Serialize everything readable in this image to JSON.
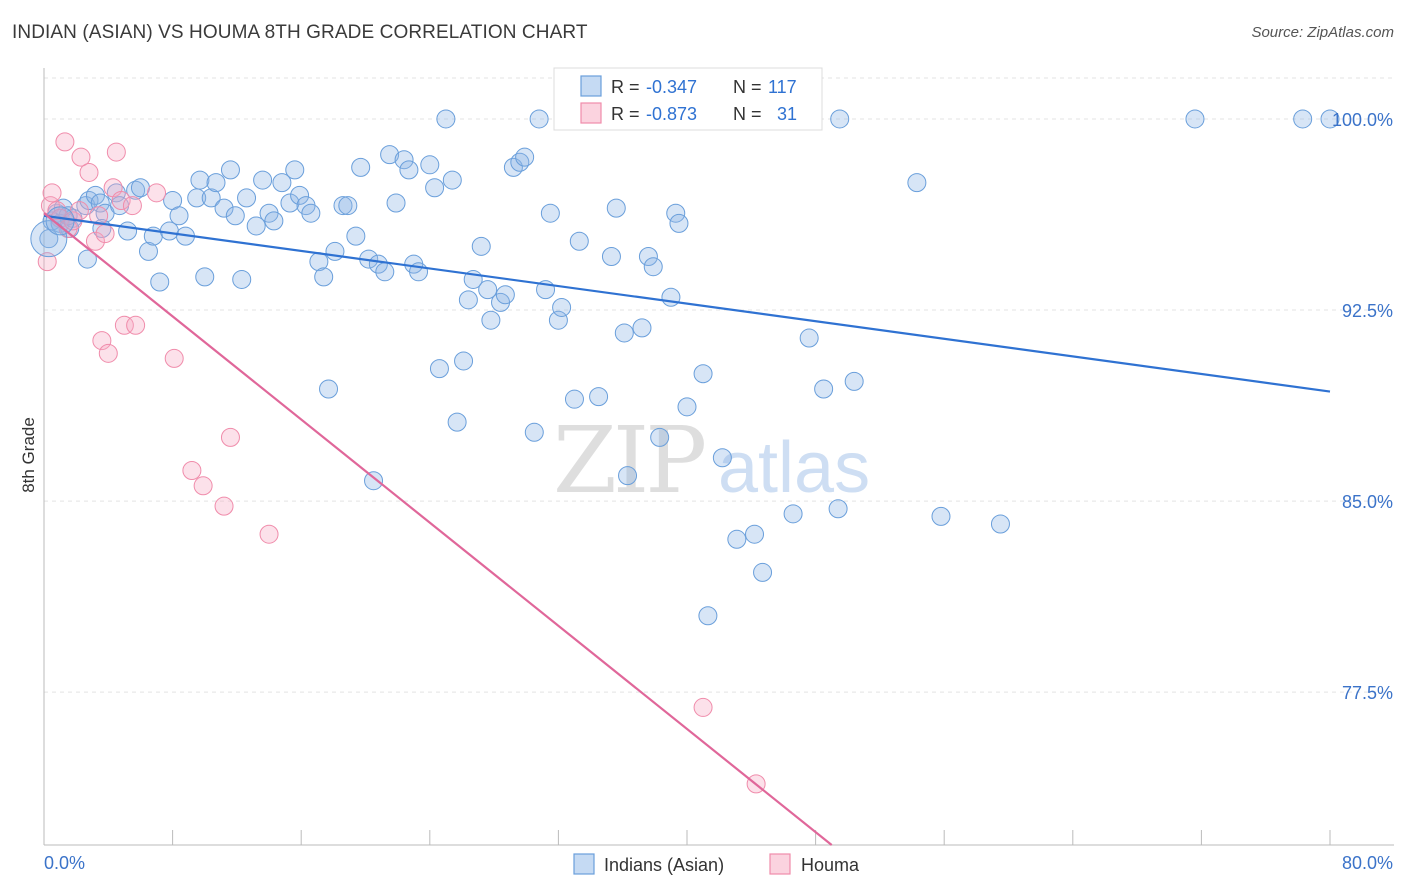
{
  "title": "INDIAN (ASIAN) VS HOUMA 8TH GRADE CORRELATION CHART",
  "source": "Source: ZipAtlas.com",
  "watermark": {
    "zip": "ZIP",
    "atlas": "atlas"
  },
  "colors": {
    "blue": "#6a9fdb",
    "blue_line": "#2f72d2",
    "pink": "#f08cab",
    "pink_line": "#e0679a",
    "axis_text": "#3b73c9",
    "grid": "#e3e3e3"
  },
  "legend": {
    "rows": [
      {
        "r_label": "R =",
        "r_value": "-0.347",
        "n_label": "N =",
        "n_value": "117"
      },
      {
        "r_label": "R =",
        "r_value": "-0.873",
        "n_label": "N =",
        "n_value": "31"
      }
    ]
  },
  "bottom_legend": [
    "Indians (Asian)",
    "Houma"
  ],
  "chart_data": {
    "type": "scatter",
    "title": "INDIAN (ASIAN) VS HOUMA 8TH GRADE CORRELATION CHART",
    "xlabel": "",
    "ylabel": "8th Grade",
    "xlim": [
      0,
      80
    ],
    "ylim": [
      71.5,
      102
    ],
    "x_tick_labels": [
      "0.0%",
      "80.0%"
    ],
    "y_ticks": [
      77.5,
      85.0,
      92.5,
      100.0
    ],
    "y_tick_labels": [
      "77.5%",
      "85.0%",
      "92.5%",
      "100.0%"
    ],
    "grid": true,
    "legend_position": "top-center",
    "series": [
      {
        "name": "Indians (Asian)",
        "color": "#6a9fdb",
        "r": -0.347,
        "n": 117,
        "trend": {
          "x": [
            0,
            80
          ],
          "y": [
            96.2,
            89.3
          ]
        },
        "points": [
          [
            0.3,
            95.3
          ],
          [
            0.5,
            96.0
          ],
          [
            0.8,
            96.3
          ],
          [
            1.0,
            95.9
          ],
          [
            1.2,
            96.5
          ],
          [
            1.6,
            95.7
          ],
          [
            1.8,
            96.1
          ],
          [
            2.6,
            96.6
          ],
          [
            1.5,
            96.2
          ],
          [
            2.7,
            94.5
          ],
          [
            2.8,
            96.8
          ],
          [
            3.2,
            97.0
          ],
          [
            3.5,
            96.7
          ],
          [
            3.8,
            96.3
          ],
          [
            3.6,
            95.7
          ],
          [
            4.5,
            97.1
          ],
          [
            4.7,
            96.6
          ],
          [
            5.2,
            95.6
          ],
          [
            5.7,
            97.2
          ],
          [
            6.0,
            97.3
          ],
          [
            6.5,
            94.8
          ],
          [
            6.8,
            95.4
          ],
          [
            7.2,
            93.6
          ],
          [
            7.8,
            95.6
          ],
          [
            8.0,
            96.8
          ],
          [
            8.4,
            96.2
          ],
          [
            8.8,
            95.4
          ],
          [
            9.5,
            96.9
          ],
          [
            9.7,
            97.6
          ],
          [
            10.0,
            93.8
          ],
          [
            10.4,
            96.9
          ],
          [
            10.7,
            97.5
          ],
          [
            11.2,
            96.5
          ],
          [
            11.6,
            98.0
          ],
          [
            11.9,
            96.2
          ],
          [
            12.3,
            93.7
          ],
          [
            12.6,
            96.9
          ],
          [
            13.2,
            95.8
          ],
          [
            13.6,
            97.6
          ],
          [
            14.0,
            96.3
          ],
          [
            14.3,
            96.0
          ],
          [
            14.8,
            97.5
          ],
          [
            15.3,
            96.7
          ],
          [
            15.6,
            98.0
          ],
          [
            15.9,
            97.0
          ],
          [
            16.3,
            96.6
          ],
          [
            16.6,
            96.3
          ],
          [
            17.1,
            94.4
          ],
          [
            17.4,
            93.8
          ],
          [
            17.7,
            89.4
          ],
          [
            18.1,
            94.8
          ],
          [
            18.6,
            96.6
          ],
          [
            18.9,
            96.6
          ],
          [
            19.4,
            95.4
          ],
          [
            19.7,
            98.1
          ],
          [
            20.2,
            94.5
          ],
          [
            20.5,
            85.8
          ],
          [
            20.8,
            94.3
          ],
          [
            21.2,
            94.0
          ],
          [
            21.5,
            98.6
          ],
          [
            21.9,
            96.7
          ],
          [
            22.4,
            98.4
          ],
          [
            22.7,
            98.0
          ],
          [
            23.0,
            94.3
          ],
          [
            23.3,
            94.0
          ],
          [
            24.0,
            98.2
          ],
          [
            24.3,
            97.3
          ],
          [
            24.6,
            90.2
          ],
          [
            25.0,
            100.0
          ],
          [
            25.4,
            97.6
          ],
          [
            25.7,
            88.1
          ],
          [
            26.1,
            90.5
          ],
          [
            26.4,
            92.9
          ],
          [
            26.7,
            93.7
          ],
          [
            27.2,
            95.0
          ],
          [
            27.6,
            93.3
          ],
          [
            27.8,
            92.1
          ],
          [
            28.4,
            92.8
          ],
          [
            28.7,
            93.1
          ],
          [
            29.2,
            98.1
          ],
          [
            29.6,
            98.3
          ],
          [
            29.9,
            98.5
          ],
          [
            30.5,
            87.7
          ],
          [
            30.8,
            100.0
          ],
          [
            31.2,
            93.3
          ],
          [
            31.5,
            96.3
          ],
          [
            32.0,
            92.1
          ],
          [
            32.2,
            92.6
          ],
          [
            33.0,
            89.0
          ],
          [
            33.3,
            95.2
          ],
          [
            34.5,
            89.1
          ],
          [
            35.3,
            94.6
          ],
          [
            35.6,
            96.5
          ],
          [
            36.1,
            91.6
          ],
          [
            36.3,
            86.0
          ],
          [
            37.2,
            91.8
          ],
          [
            37.6,
            94.6
          ],
          [
            37.9,
            94.2
          ],
          [
            38.3,
            87.5
          ],
          [
            39.0,
            93.0
          ],
          [
            39.3,
            96.3
          ],
          [
            39.5,
            95.9
          ],
          [
            40.0,
            88.7
          ],
          [
            41.0,
            90.0
          ],
          [
            41.3,
            80.5
          ],
          [
            42.2,
            86.7
          ],
          [
            43.1,
            83.5
          ],
          [
            44.2,
            83.7
          ],
          [
            44.7,
            82.2
          ],
          [
            46.6,
            84.5
          ],
          [
            47.6,
            91.4
          ],
          [
            48.5,
            89.4
          ],
          [
            49.5,
            100.0
          ],
          [
            49.4,
            84.7
          ],
          [
            50.4,
            89.7
          ],
          [
            54.3,
            97.5
          ],
          [
            55.8,
            84.4
          ],
          [
            59.5,
            84.1
          ],
          [
            71.6,
            100.0
          ],
          [
            78.3,
            100.0
          ],
          [
            80.0,
            100.0
          ]
        ]
      },
      {
        "name": "Houma",
        "color": "#f08cab",
        "r": -0.873,
        "n": 31,
        "trend": {
          "x": [
            0,
            49
          ],
          "y": [
            96.3,
            71.5
          ]
        },
        "points": [
          [
            0.2,
            94.4
          ],
          [
            0.4,
            96.6
          ],
          [
            0.5,
            97.1
          ],
          [
            0.8,
            96.4
          ],
          [
            1.0,
            96.1
          ],
          [
            1.5,
            95.7
          ],
          [
            1.8,
            96.0
          ],
          [
            2.2,
            96.4
          ],
          [
            2.3,
            98.5
          ],
          [
            1.3,
            99.1
          ],
          [
            2.8,
            97.9
          ],
          [
            3.2,
            95.2
          ],
          [
            3.4,
            96.2
          ],
          [
            3.6,
            91.3
          ],
          [
            3.8,
            95.5
          ],
          [
            4.0,
            90.8
          ],
          [
            4.3,
            97.3
          ],
          [
            4.5,
            98.7
          ],
          [
            4.8,
            96.8
          ],
          [
            5.0,
            91.9
          ],
          [
            5.5,
            96.6
          ],
          [
            5.7,
            91.9
          ],
          [
            7.0,
            97.1
          ],
          [
            8.1,
            90.6
          ],
          [
            9.2,
            86.2
          ],
          [
            9.9,
            85.6
          ],
          [
            11.2,
            84.8
          ],
          [
            11.6,
            87.5
          ],
          [
            14.0,
            83.7
          ],
          [
            41.0,
            76.9
          ],
          [
            44.3,
            73.9
          ]
        ]
      }
    ]
  }
}
